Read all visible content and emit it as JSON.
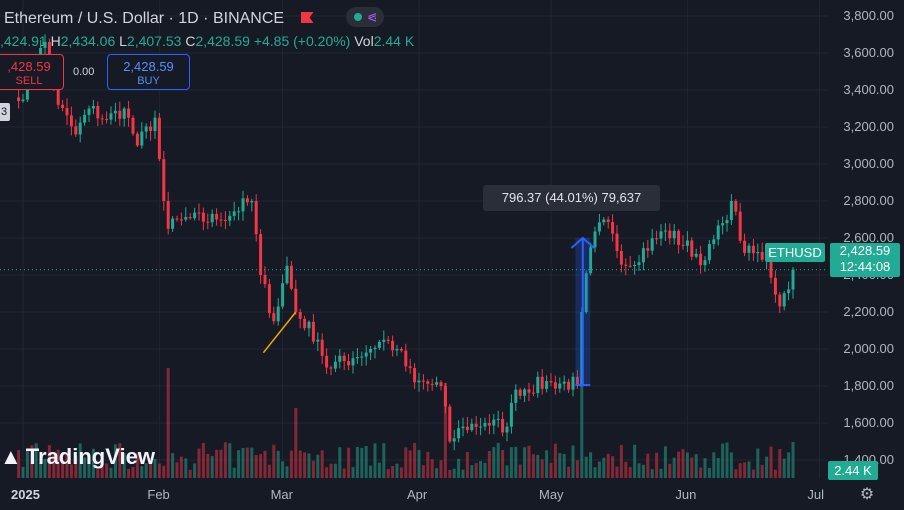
{
  "header": {
    "title": "Ethereum / U.S. Dollar · 1D · BINANCE",
    "ohlc": {
      "o_label": "",
      "o": ",424.91",
      "h_label": "H",
      "h": "2,434.06",
      "l_label": "L",
      "l": "2,407.53",
      "c_label": "C",
      "c": "2,428.59",
      "change": "+4.85 (+0.20%)",
      "vol_label": "Vol",
      "vol": "2.44 K"
    }
  },
  "trade": {
    "sell_price": ",428.59",
    "sell_label": "SELL",
    "spread": "0.00",
    "buy_price": "2,428.59",
    "buy_label": "BUY",
    "side_badge": "3"
  },
  "measure_label": "796.37 (44.01%) 79,637",
  "price_tag": {
    "symbol": "ETHUSD",
    "price": "2,428.59",
    "countdown": "12:44:08"
  },
  "volume_tag": "2.44 K",
  "logo": {
    "text": "TradingView"
  },
  "colors": {
    "up": "#22ab94",
    "down": "#f23645",
    "bg": "#161a25",
    "grid": "#232632",
    "accent_buy": "#2962ff"
  },
  "icons": {
    "alert": "flag-icon",
    "share": "share-icon",
    "settings": "gear-icon",
    "logo": "tradingview-logo-icon"
  },
  "chart_data": {
    "type": "candlestick",
    "title": "Ethereum / U.S. Dollar · 1D · BINANCE",
    "y_axis": {
      "labels": [
        "3,800.00",
        "3,600.00",
        "3,400.00",
        "3,200.00",
        "3,000.00",
        "2,800.00",
        "2,600.00",
        "2,400.00",
        "2,200.00",
        "2,000.00",
        "1,800.00",
        "1,600.00",
        "1,400.00"
      ],
      "values": [
        3800,
        3600,
        3400,
        3200,
        3000,
        2800,
        2600,
        2400,
        2200,
        2000,
        1800,
        1600,
        1400
      ],
      "range": [
        1200,
        3900
      ]
    },
    "x_axis": {
      "labels": [
        "2025",
        "Feb",
        "Mar",
        "Apr",
        "May",
        "Jun",
        "Jul"
      ]
    },
    "last_price": 2428.59,
    "measure": {
      "from": 1805,
      "to": 2600,
      "label": "796.37 (44.01%) 79,637"
    },
    "anchors": [
      {
        "date": "2024-12-31",
        "close": 3340
      },
      {
        "date": "2025-01-06",
        "close": 3660
      },
      {
        "date": "2025-01-09",
        "close": 3320
      },
      {
        "date": "2025-01-13",
        "close": 3160
      },
      {
        "date": "2025-01-16",
        "close": 3300
      },
      {
        "date": "2025-01-20",
        "close": 3240
      },
      {
        "date": "2025-01-24",
        "close": 3300
      },
      {
        "date": "2025-01-27",
        "close": 3100
      },
      {
        "date": "2025-01-31",
        "close": 3250
      },
      {
        "date": "2025-02-02",
        "close": 2800
      },
      {
        "date": "2025-02-03",
        "close": 2650
      },
      {
        "date": "2025-02-06",
        "close": 2700
      },
      {
        "date": "2025-02-14",
        "close": 2700
      },
      {
        "date": "2025-02-22",
        "close": 2800
      },
      {
        "date": "2025-02-24",
        "close": 2400
      },
      {
        "date": "2025-02-27",
        "close": 2150
      },
      {
        "date": "2025-03-02",
        "close": 2450
      },
      {
        "date": "2025-03-04",
        "close": 2200
      },
      {
        "date": "2025-03-09",
        "close": 2050
      },
      {
        "date": "2025-03-11",
        "close": 1900
      },
      {
        "date": "2025-03-17",
        "close": 1950
      },
      {
        "date": "2025-03-24",
        "close": 2050
      },
      {
        "date": "2025-03-27",
        "close": 2000
      },
      {
        "date": "2025-03-31",
        "close": 1820
      },
      {
        "date": "2025-04-06",
        "close": 1800
      },
      {
        "date": "2025-04-08",
        "close": 1500
      },
      {
        "date": "2025-04-11",
        "close": 1580
      },
      {
        "date": "2025-04-16",
        "close": 1600
      },
      {
        "date": "2025-04-21",
        "close": 1580
      },
      {
        "date": "2025-04-23",
        "close": 1780
      },
      {
        "date": "2025-05-01",
        "close": 1820
      },
      {
        "date": "2025-05-07",
        "close": 1810
      },
      {
        "date": "2025-05-08",
        "close": 2200
      },
      {
        "date": "2025-05-10",
        "close": 2550
      },
      {
        "date": "2025-05-13",
        "close": 2700
      },
      {
        "date": "2025-05-18",
        "close": 2450
      },
      {
        "date": "2025-05-27",
        "close": 2640
      },
      {
        "date": "2025-06-05",
        "close": 2480
      },
      {
        "date": "2025-06-09",
        "close": 2680
      },
      {
        "date": "2025-06-11",
        "close": 2800
      },
      {
        "date": "2025-06-14",
        "close": 2520
      },
      {
        "date": "2025-06-19",
        "close": 2500
      },
      {
        "date": "2025-06-22",
        "close": 2230
      },
      {
        "date": "2025-06-25",
        "close": 2428.59
      }
    ]
  }
}
